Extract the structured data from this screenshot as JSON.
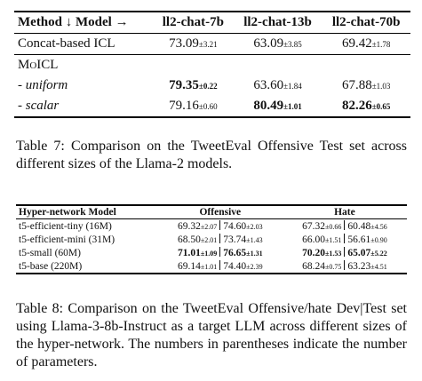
{
  "table7": {
    "header": [
      "Method ↓ Model →",
      "ll2-chat-7b",
      "ll2-chat-13b",
      "ll2-chat-70b"
    ],
    "rows": [
      {
        "label": "Concat-based ICL",
        "cells": [
          {
            "value": "73.09",
            "sd": "±3.21"
          },
          {
            "value": "63.09",
            "sd": "±3.85"
          },
          {
            "value": "69.42",
            "sd": "±1.78"
          }
        ]
      },
      {
        "label": "MoICL",
        "cells": []
      },
      {
        "label": "- uniform",
        "cells": [
          {
            "value": "79.35",
            "sd": "±0.22",
            "bold": true
          },
          {
            "value": "63.60",
            "sd": "±1.84"
          },
          {
            "value": "67.88",
            "sd": "±1.03"
          }
        ]
      },
      {
        "label": "- scalar",
        "cells": [
          {
            "value": "79.16",
            "sd": "±0.60"
          },
          {
            "value": "80.49",
            "sd": "±1.01",
            "bold": true
          },
          {
            "value": "82.26",
            "sd": "±0.65",
            "bold": true
          }
        ]
      }
    ],
    "caption": "Table 7: Comparison on the TweetEval Offensive Test set across different sizes of the Llama-2 models."
  },
  "table8": {
    "header": [
      "Hyper-network Model",
      "Offensive",
      "Hate"
    ],
    "rows": [
      {
        "label": "t5-efficient-tiny (16M)",
        "offensive": [
          {
            "value": "69.32",
            "sd": "±2.07"
          },
          {
            "value": "74.60",
            "sd": "±2.03"
          }
        ],
        "hate": [
          {
            "value": "67.32",
            "sd": "±0.66"
          },
          {
            "value": "60.48",
            "sd": "±4.56"
          }
        ]
      },
      {
        "label": "t5-efficient-mini (31M)",
        "offensive": [
          {
            "value": "68.50",
            "sd": "±2.01"
          },
          {
            "value": "73.74",
            "sd": "±1.43"
          }
        ],
        "hate": [
          {
            "value": "66.00",
            "sd": "±1.51"
          },
          {
            "value": "56.61",
            "sd": "±0.90"
          }
        ]
      },
      {
        "label": "t5-small (60M)",
        "offensive": [
          {
            "value": "71.01",
            "sd": "±1.09",
            "bold": true
          },
          {
            "value": "76.65",
            "sd": "±1.31",
            "bold": true
          }
        ],
        "hate": [
          {
            "value": "70.20",
            "sd": "±1.53",
            "bold": true
          },
          {
            "value": "65.07",
            "sd": "±5.22",
            "bold": true
          }
        ]
      },
      {
        "label": "t5-base (220M)",
        "offensive": [
          {
            "value": "69.14",
            "sd": "±1.01"
          },
          {
            "value": "74.40",
            "sd": "±2.39"
          }
        ],
        "hate": [
          {
            "value": "68.24",
            "sd": "±0.75"
          },
          {
            "value": "63.23",
            "sd": "±4.51"
          }
        ]
      }
    ],
    "caption": "Table 8: Comparison on the TweetEval Offensive/hate Dev|Test set using Llama-3-8b-Instruct as a target LLM across different sizes of the hyper-network. The numbers in parentheses indicate the number of parameters."
  }
}
